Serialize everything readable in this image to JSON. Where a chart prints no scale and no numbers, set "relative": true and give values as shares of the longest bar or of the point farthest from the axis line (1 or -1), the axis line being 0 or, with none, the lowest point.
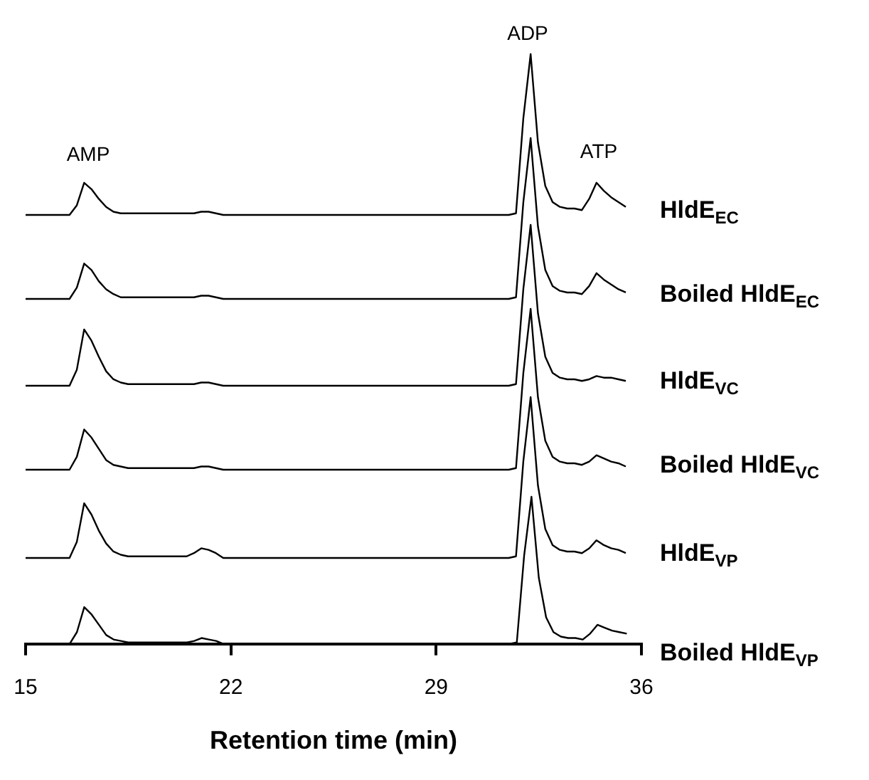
{
  "chart_data": [
    {
      "type": "line",
      "relative": true,
      "tick_labels": false,
      "grid": false,
      "legend": false,
      "marker": "none",
      "line_style": "solid",
      "annotations": [
        "AMP",
        "ADP",
        "ATP"
      ],
      "categories": [
        null,
        null,
        null,
        null,
        null,
        null,
        null,
        null,
        null,
        null,
        null,
        null,
        null,
        null,
        null,
        null,
        null,
        null,
        null,
        null,
        null,
        null,
        null,
        null,
        null,
        null,
        null,
        null,
        null,
        null,
        null,
        null,
        null,
        null,
        null,
        null,
        null,
        null,
        null,
        null,
        null,
        null,
        null,
        null,
        null,
        null,
        null,
        null,
        null,
        null,
        null,
        null,
        null,
        null,
        null,
        null,
        null,
        null,
        null,
        null,
        null,
        null,
        null,
        null,
        null,
        null,
        null,
        null,
        null,
        null,
        null,
        null,
        null,
        null,
        null,
        null,
        null,
        null,
        null,
        null,
        null,
        null,
        null
      ],
      "series": [
        {
          "name": "HldE$_{EC}$",
          "color": "#000000",
          "values": [
            0,
            0,
            0,
            0,
            0,
            0,
            0,
            0.06,
            0.2,
            0.16,
            0.1,
            0.05,
            0.02,
            0.01,
            0.01,
            0.01,
            0.01,
            0.01,
            0.01,
            0.01,
            0.01,
            0.01,
            0.01,
            0.01,
            0.02,
            0.02,
            0.01,
            0,
            0,
            0,
            0,
            0,
            0,
            0,
            0,
            0,
            0,
            0,
            0,
            0,
            0,
            0,
            0,
            0,
            0,
            0,
            0,
            0,
            0,
            0,
            0,
            0,
            0,
            0,
            0,
            0,
            0,
            0,
            0,
            0,
            0,
            0,
            0,
            0,
            0,
            0,
            0,
            0.01,
            0.6,
            1,
            0.45,
            0.18,
            0.08,
            0.05,
            0.04,
            0.04,
            0.03,
            0.1,
            0.2,
            0.15,
            0.11,
            0.08,
            0.05
          ]
        }
      ]
    },
    {
      "type": "line",
      "relative": true,
      "tick_labels": false,
      "grid": false,
      "legend": false,
      "marker": "none",
      "line_style": "solid",
      "categories": [
        null,
        null,
        null,
        null,
        null,
        null,
        null,
        null,
        null,
        null,
        null,
        null,
        null,
        null,
        null,
        null,
        null,
        null,
        null,
        null,
        null,
        null,
        null,
        null,
        null,
        null,
        null,
        null,
        null,
        null,
        null,
        null,
        null,
        null,
        null,
        null,
        null,
        null,
        null,
        null,
        null,
        null,
        null,
        null,
        null,
        null,
        null,
        null,
        null,
        null,
        null,
        null,
        null,
        null,
        null,
        null,
        null,
        null,
        null,
        null,
        null,
        null,
        null,
        null,
        null,
        null,
        null,
        null,
        null,
        null,
        null,
        null,
        null,
        null,
        null,
        null,
        null,
        null,
        null,
        null,
        null,
        null,
        null
      ],
      "series": [
        {
          "name": "Boiled HldE$_{EC}$",
          "color": "#000000",
          "values": [
            0,
            0,
            0,
            0,
            0,
            0,
            0,
            0.07,
            0.22,
            0.18,
            0.11,
            0.06,
            0.03,
            0.01,
            0.01,
            0.01,
            0.01,
            0.01,
            0.01,
            0.01,
            0.01,
            0.01,
            0.01,
            0.01,
            0.02,
            0.02,
            0.01,
            0,
            0,
            0,
            0,
            0,
            0,
            0,
            0,
            0,
            0,
            0,
            0,
            0,
            0,
            0,
            0,
            0,
            0,
            0,
            0,
            0,
            0,
            0,
            0,
            0,
            0,
            0,
            0,
            0,
            0,
            0,
            0,
            0,
            0,
            0,
            0,
            0,
            0,
            0,
            0,
            0.01,
            0.6,
            1,
            0.45,
            0.18,
            0.08,
            0.05,
            0.04,
            0.04,
            0.03,
            0.08,
            0.16,
            0.12,
            0.09,
            0.06,
            0.04
          ]
        }
      ]
    },
    {
      "type": "line",
      "relative": true,
      "tick_labels": false,
      "grid": false,
      "legend": false,
      "marker": "none",
      "line_style": "solid",
      "categories": [
        null,
        null,
        null,
        null,
        null,
        null,
        null,
        null,
        null,
        null,
        null,
        null,
        null,
        null,
        null,
        null,
        null,
        null,
        null,
        null,
        null,
        null,
        null,
        null,
        null,
        null,
        null,
        null,
        null,
        null,
        null,
        null,
        null,
        null,
        null,
        null,
        null,
        null,
        null,
        null,
        null,
        null,
        null,
        null,
        null,
        null,
        null,
        null,
        null,
        null,
        null,
        null,
        null,
        null,
        null,
        null,
        null,
        null,
        null,
        null,
        null,
        null,
        null,
        null,
        null,
        null,
        null,
        null,
        null,
        null,
        null,
        null,
        null,
        null,
        null,
        null,
        null,
        null,
        null,
        null,
        null,
        null,
        null
      ],
      "series": [
        {
          "name": "HldE$_{VC}$",
          "color": "#000000",
          "values": [
            0,
            0,
            0,
            0,
            0,
            0,
            0,
            0.1,
            0.35,
            0.28,
            0.18,
            0.09,
            0.04,
            0.02,
            0.01,
            0.01,
            0.01,
            0.01,
            0.01,
            0.01,
            0.01,
            0.01,
            0.01,
            0.01,
            0.02,
            0.02,
            0.01,
            0,
            0,
            0,
            0,
            0,
            0,
            0,
            0,
            0,
            0,
            0,
            0,
            0,
            0,
            0,
            0,
            0,
            0,
            0,
            0,
            0,
            0,
            0,
            0,
            0,
            0,
            0,
            0,
            0,
            0,
            0,
            0,
            0,
            0,
            0,
            0,
            0,
            0,
            0,
            0,
            0.01,
            0.6,
            1,
            0.45,
            0.18,
            0.08,
            0.05,
            0.04,
            0.04,
            0.03,
            0.04,
            0.06,
            0.05,
            0.05,
            0.04,
            0.03
          ]
        }
      ]
    },
    {
      "type": "line",
      "relative": true,
      "tick_labels": false,
      "grid": false,
      "legend": false,
      "marker": "none",
      "line_style": "solid",
      "categories": [
        null,
        null,
        null,
        null,
        null,
        null,
        null,
        null,
        null,
        null,
        null,
        null,
        null,
        null,
        null,
        null,
        null,
        null,
        null,
        null,
        null,
        null,
        null,
        null,
        null,
        null,
        null,
        null,
        null,
        null,
        null,
        null,
        null,
        null,
        null,
        null,
        null,
        null,
        null,
        null,
        null,
        null,
        null,
        null,
        null,
        null,
        null,
        null,
        null,
        null,
        null,
        null,
        null,
        null,
        null,
        null,
        null,
        null,
        null,
        null,
        null,
        null,
        null,
        null,
        null,
        null,
        null,
        null,
        null,
        null,
        null,
        null,
        null,
        null,
        null,
        null,
        null,
        null,
        null,
        null,
        null,
        null,
        null
      ],
      "series": [
        {
          "name": "Boiled HldE$_{VC}$",
          "color": "#000000",
          "values": [
            0,
            0,
            0,
            0,
            0,
            0,
            0,
            0.08,
            0.25,
            0.2,
            0.13,
            0.06,
            0.03,
            0.02,
            0.01,
            0.01,
            0.01,
            0.01,
            0.01,
            0.01,
            0.01,
            0.01,
            0.01,
            0.01,
            0.02,
            0.02,
            0.01,
            0,
            0,
            0,
            0,
            0,
            0,
            0,
            0,
            0,
            0,
            0,
            0,
            0,
            0,
            0,
            0,
            0,
            0,
            0,
            0,
            0,
            0,
            0,
            0,
            0,
            0,
            0,
            0,
            0,
            0,
            0,
            0,
            0,
            0,
            0,
            0,
            0,
            0,
            0,
            0,
            0.01,
            0.6,
            1,
            0.45,
            0.18,
            0.08,
            0.05,
            0.04,
            0.04,
            0.03,
            0.05,
            0.09,
            0.07,
            0.05,
            0.04,
            0.02
          ]
        }
      ]
    },
    {
      "type": "line",
      "relative": true,
      "tick_labels": false,
      "grid": false,
      "legend": false,
      "marker": "none",
      "line_style": "solid",
      "categories": [
        null,
        null,
        null,
        null,
        null,
        null,
        null,
        null,
        null,
        null,
        null,
        null,
        null,
        null,
        null,
        null,
        null,
        null,
        null,
        null,
        null,
        null,
        null,
        null,
        null,
        null,
        null,
        null,
        null,
        null,
        null,
        null,
        null,
        null,
        null,
        null,
        null,
        null,
        null,
        null,
        null,
        null,
        null,
        null,
        null,
        null,
        null,
        null,
        null,
        null,
        null,
        null,
        null,
        null,
        null,
        null,
        null,
        null,
        null,
        null,
        null,
        null,
        null,
        null,
        null,
        null,
        null,
        null,
        null,
        null,
        null,
        null,
        null,
        null,
        null,
        null,
        null,
        null,
        null,
        null,
        null,
        null,
        null
      ],
      "series": [
        {
          "name": "HldE$_{VP}$",
          "color": "#000000",
          "values": [
            0,
            0,
            0,
            0,
            0,
            0,
            0,
            0.1,
            0.34,
            0.27,
            0.17,
            0.09,
            0.04,
            0.02,
            0.01,
            0.01,
            0.01,
            0.01,
            0.01,
            0.01,
            0.01,
            0.01,
            0.01,
            0.03,
            0.06,
            0.05,
            0.03,
            0,
            0,
            0,
            0,
            0,
            0,
            0,
            0,
            0,
            0,
            0,
            0,
            0,
            0,
            0,
            0,
            0,
            0,
            0,
            0,
            0,
            0,
            0,
            0,
            0,
            0,
            0,
            0,
            0,
            0,
            0,
            0,
            0,
            0,
            0,
            0,
            0,
            0,
            0,
            0,
            0.01,
            0.6,
            1,
            0.45,
            0.18,
            0.08,
            0.05,
            0.04,
            0.04,
            0.03,
            0.06,
            0.11,
            0.08,
            0.06,
            0.05,
            0.03
          ]
        }
      ]
    },
    {
      "type": "line",
      "relative": true,
      "xlim": [
        15,
        36
      ],
      "xticks": [
        15,
        22,
        29,
        36
      ],
      "tick_labels": "x",
      "grid": false,
      "legend": false,
      "marker": "none",
      "line_style": "solid",
      "xlabel": "Retention time (min)",
      "x": [
        15,
        15.25,
        15.5,
        15.75,
        16,
        16.25,
        16.5,
        16.75,
        17,
        17.25,
        17.5,
        17.75,
        18,
        18.25,
        18.5,
        18.75,
        19,
        19.25,
        19.5,
        19.75,
        20,
        20.25,
        20.5,
        20.75,
        21,
        21.25,
        21.5,
        21.75,
        22,
        22.25,
        22.5,
        22.75,
        23,
        23.25,
        23.5,
        23.75,
        24,
        24.25,
        24.5,
        24.75,
        25,
        25.25,
        25.5,
        25.75,
        26,
        26.25,
        26.5,
        26.75,
        27,
        27.25,
        27.5,
        27.75,
        28,
        28.25,
        28.5,
        28.75,
        29,
        29.25,
        29.5,
        29.75,
        30,
        30.25,
        30.5,
        30.75,
        31,
        31.25,
        31.5,
        31.75,
        32,
        32.25,
        32.5,
        32.75,
        33,
        33.25,
        33.5,
        33.75,
        34,
        34.25,
        34.5,
        34.75,
        35,
        35.25,
        35.5
      ],
      "series": [
        {
          "name": "Boiled HldE$_{VP}$",
          "color": "#000000",
          "values": [
            0,
            0,
            0,
            0,
            0,
            0,
            0,
            0.08,
            0.25,
            0.2,
            0.13,
            0.06,
            0.03,
            0.02,
            0.01,
            0.01,
            0.01,
            0.01,
            0.01,
            0.01,
            0.01,
            0.01,
            0.01,
            0.02,
            0.04,
            0.03,
            0.02,
            0,
            0,
            0,
            0,
            0,
            0,
            0,
            0,
            0,
            0,
            0,
            0,
            0,
            0,
            0,
            0,
            0,
            0,
            0,
            0,
            0,
            0,
            0,
            0,
            0,
            0,
            0,
            0,
            0,
            0,
            0,
            0,
            0,
            0,
            0,
            0,
            0,
            0,
            0,
            0,
            0.01,
            0.6,
            1,
            0.45,
            0.18,
            0.08,
            0.05,
            0.04,
            0.04,
            0.03,
            0.07,
            0.13,
            0.11,
            0.09,
            0.08,
            0.07
          ]
        }
      ]
    }
  ]
}
